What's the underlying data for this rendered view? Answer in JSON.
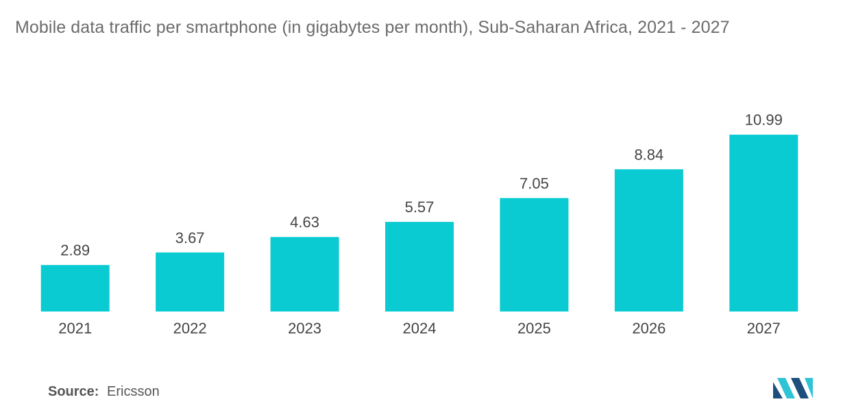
{
  "title": "Mobile data traffic per smartphone (in gigabytes per month), Sub-Saharan Africa, 2021  - 2027",
  "source": {
    "label": "Source:",
    "value": "Ericsson"
  },
  "logo": {
    "icon": "mordor-intelligence-logo-icon",
    "color_dark": "#1d4f7c",
    "color_light": "#2ec4d6"
  },
  "colors": {
    "bar": "#0acbd2",
    "label": "#444444"
  },
  "chart_data": {
    "type": "bar",
    "title": "Mobile data traffic per smartphone (in gigabytes per month), Sub-Saharan Africa, 2021  - 2027",
    "categories": [
      "2021",
      "2022",
      "2023",
      "2024",
      "2025",
      "2026",
      "2027"
    ],
    "values": [
      2.89,
      3.67,
      4.63,
      5.57,
      7.05,
      8.84,
      10.99
    ],
    "value_labels": [
      "2.89",
      "3.67",
      "4.63",
      "5.57",
      "7.05",
      "8.84",
      "10.99"
    ],
    "xlabel": "",
    "ylabel": "",
    "ylim": [
      0,
      12
    ],
    "grid": false,
    "legend": "none"
  }
}
